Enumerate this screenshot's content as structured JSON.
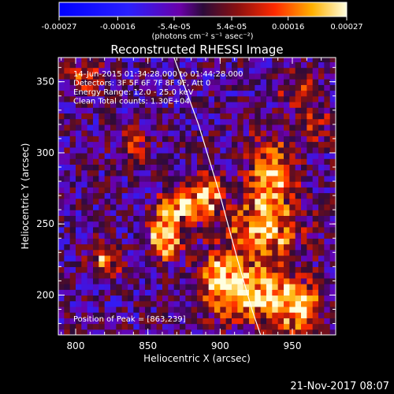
{
  "chart_data": {
    "type": "heatmap",
    "title": "Reconstructed RHESSI Image",
    "xlabel": "Heliocentric X (arcsec)",
    "ylabel": "Heliocentric Y (arcsec)",
    "xlim": [
      788,
      980
    ],
    "ylim": [
      172,
      367
    ],
    "x_ticks": [
      800,
      850,
      900,
      950
    ],
    "y_ticks": [
      200,
      250,
      300,
      350
    ],
    "x_tick_labels": [
      "800",
      "850",
      "900",
      "950"
    ],
    "y_tick_labels": [
      "200",
      "250",
      "300",
      "350"
    ],
    "colorbar": {
      "range": [
        -0.00027,
        0.00027
      ],
      "ticks": [
        -0.00027,
        -0.00016,
        -5.4e-05,
        5.4e-05,
        0.00016,
        0.00027
      ],
      "tick_labels": [
        "-0.00027",
        "-0.00016",
        "-5.4e-05",
        "5.4e-05",
        "0.00016",
        "0.00027"
      ],
      "unit_label": "(photons cm⁻² s⁻¹ asec⁻²)"
    },
    "annotations": [
      "14-Jun-2015 01:34:28.000 to 01:44:28.000",
      "Detectors: 3F 5F 6F 7F 8F 9F, Att 0",
      "Energy Range: 12.0 - 25.0 keV",
      "Clean     Total counts: 1.30E+04"
    ],
    "peak_label": "Position of Peak = [863,239]",
    "peak": [
      863,
      239
    ],
    "limb_curve": [
      [
        867,
        370
      ],
      [
        885,
        320
      ],
      [
        900,
        270
      ],
      [
        912,
        225
      ],
      [
        922,
        190
      ],
      [
        928,
        172
      ]
    ],
    "sources": [
      {
        "x": 862,
        "y": 240,
        "sx": 8,
        "sy": 9,
        "amp": 1.0
      },
      {
        "x": 870,
        "y": 262,
        "sx": 10,
        "sy": 6,
        "amp": 0.8
      },
      {
        "x": 890,
        "y": 270,
        "sx": 9,
        "sy": 12,
        "amp": 0.7
      },
      {
        "x": 935,
        "y": 285,
        "sx": 11,
        "sy": 18,
        "amp": 0.75
      },
      {
        "x": 930,
        "y": 245,
        "sx": 18,
        "sy": 14,
        "amp": 0.7
      },
      {
        "x": 925,
        "y": 200,
        "sx": 22,
        "sy": 14,
        "amp": 0.85
      },
      {
        "x": 900,
        "y": 215,
        "sx": 10,
        "sy": 10,
        "amp": 0.65
      },
      {
        "x": 955,
        "y": 190,
        "sx": 12,
        "sy": 12,
        "amp": 0.55
      },
      {
        "x": 820,
        "y": 225,
        "sx": 8,
        "sy": 8,
        "amp": 0.6
      },
      {
        "x": 805,
        "y": 355,
        "sx": 9,
        "sy": 8,
        "amp": 0.45
      },
      {
        "x": 955,
        "y": 345,
        "sx": 10,
        "sy": 8,
        "amp": 0.4
      },
      {
        "x": 840,
        "y": 305,
        "sx": 8,
        "sy": 8,
        "amp": 0.35
      },
      {
        "x": 965,
        "y": 320,
        "sx": 8,
        "sy": 10,
        "amp": 0.4
      }
    ]
  },
  "footer": {
    "date": "21-Nov-2017 08:07"
  }
}
